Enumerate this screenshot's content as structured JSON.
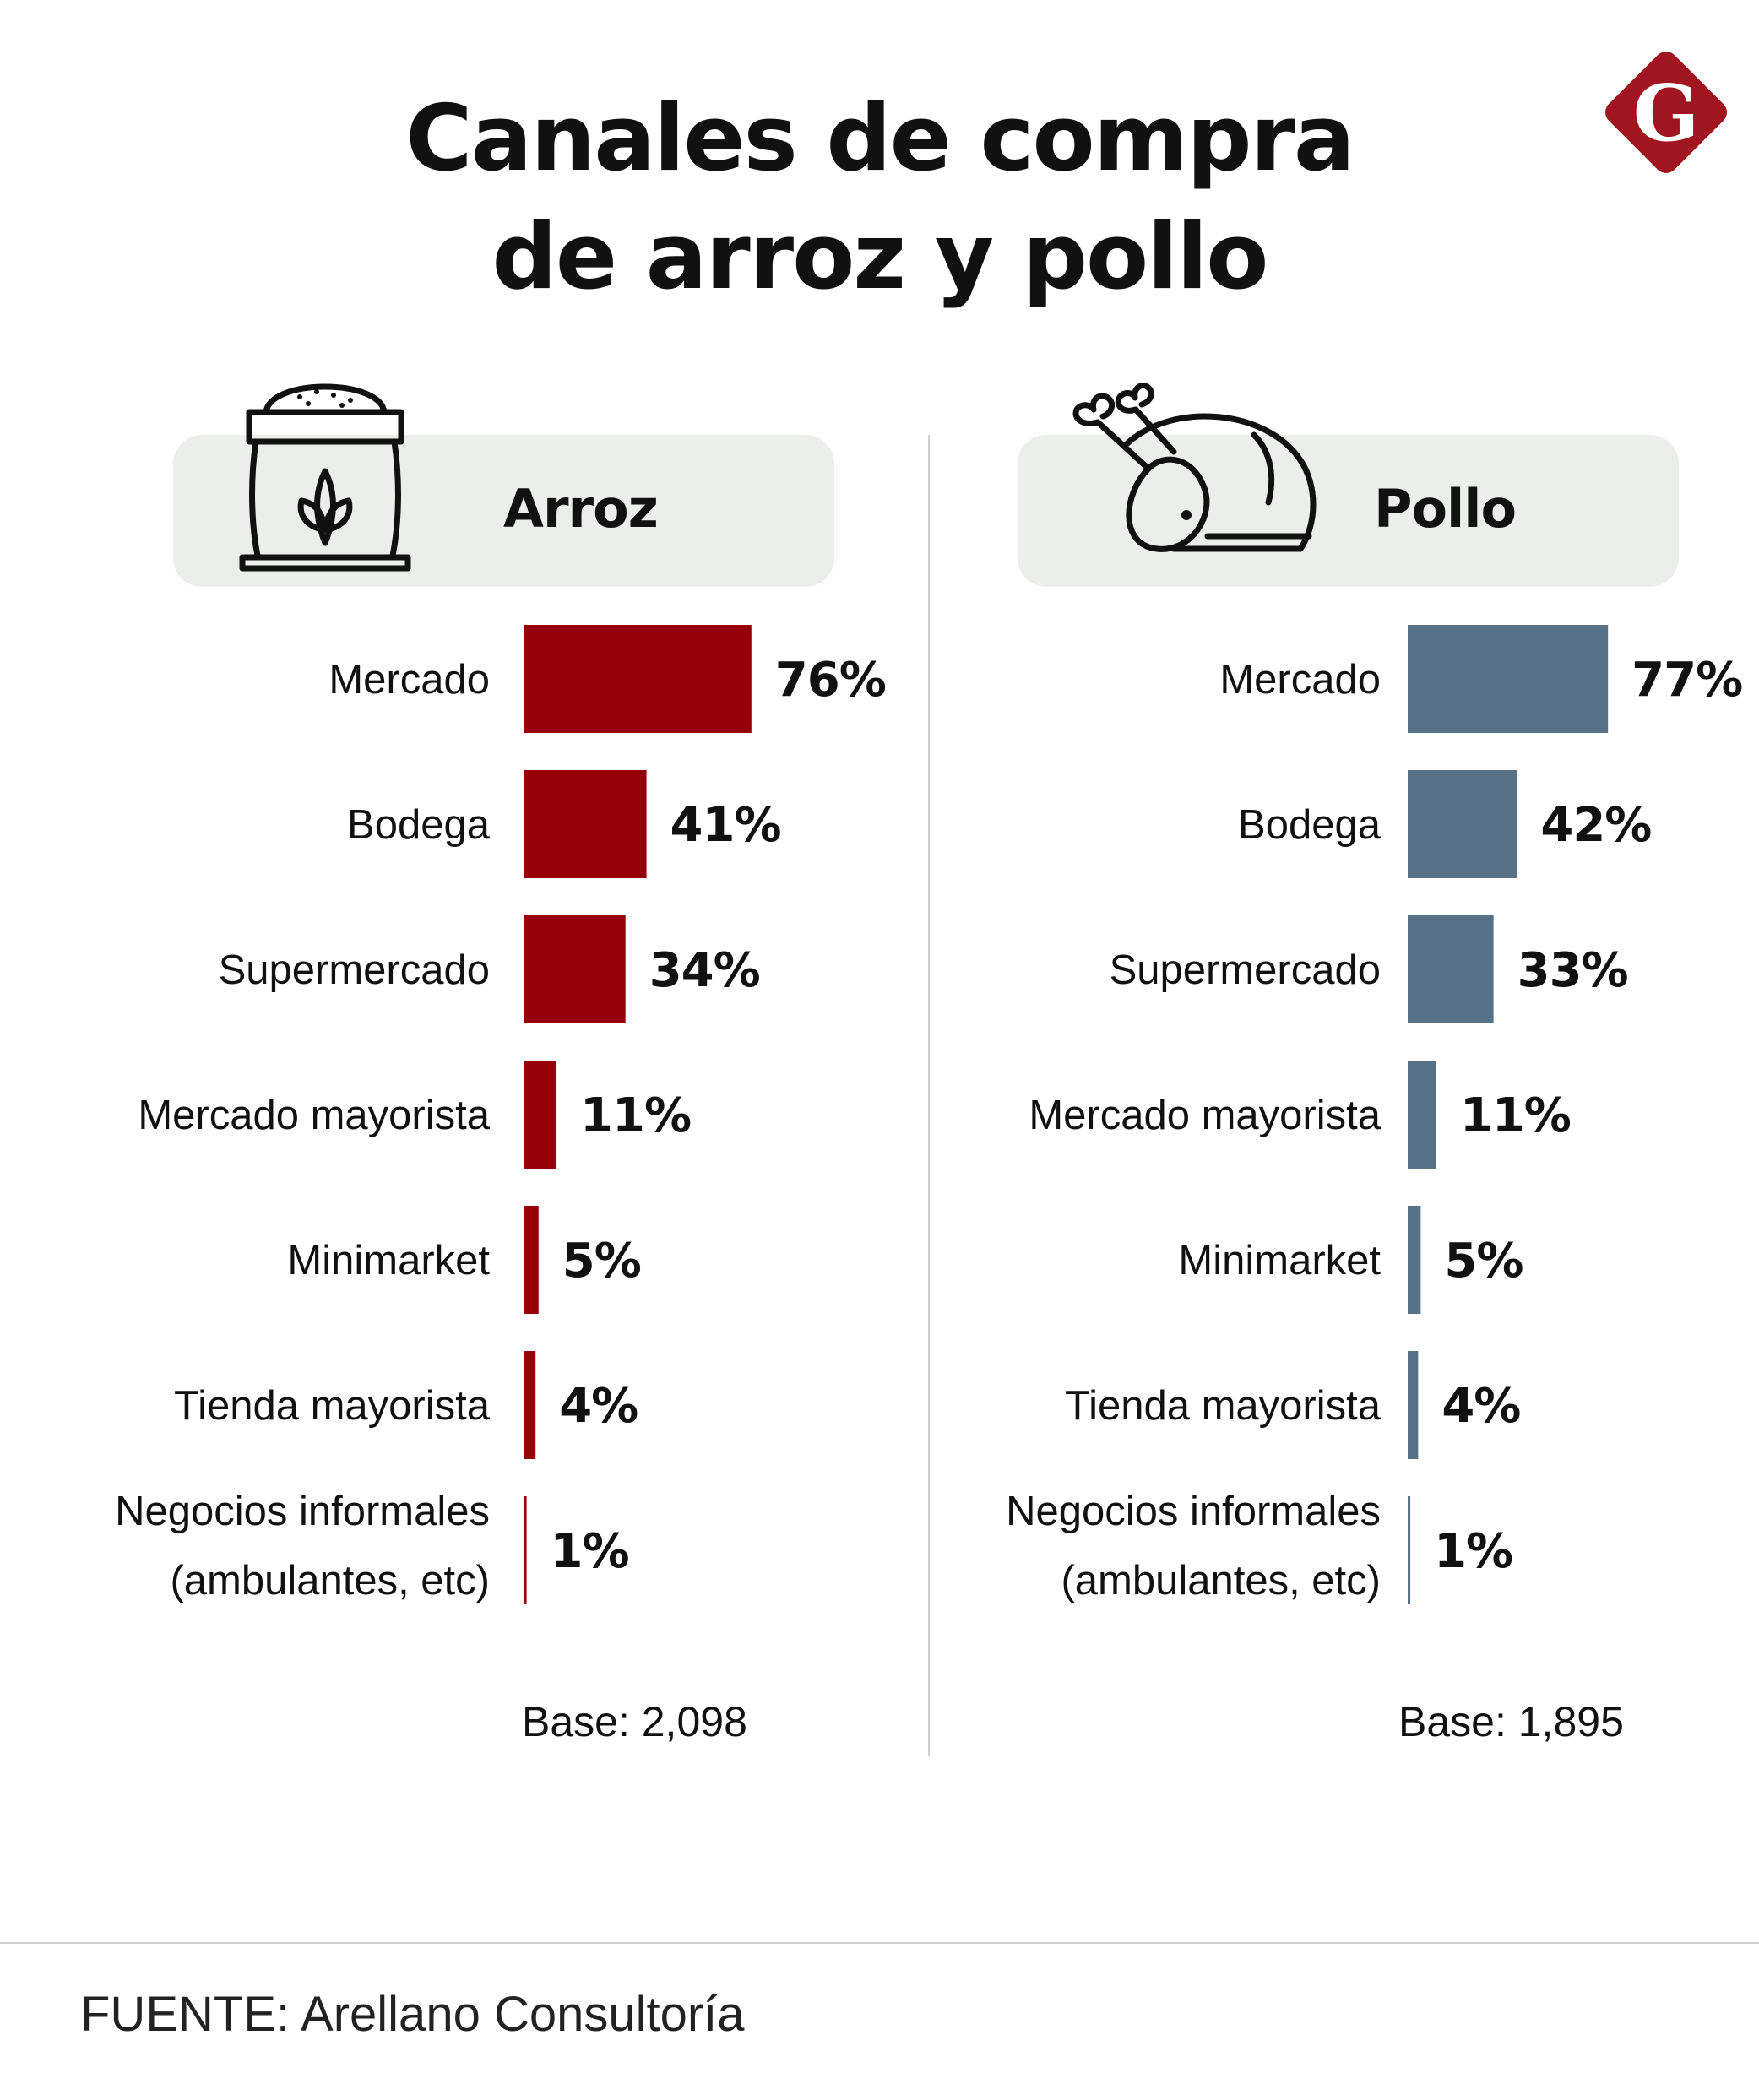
{
  "title_line1": "Canales de compra",
  "title_line2": "de arroz y pollo",
  "logo_letter": "G",
  "source": "FUENTE: Arellano Consultoría",
  "colors": {
    "arroz": "#960008",
    "pollo": "#577189",
    "header_bg": "#ebeeea",
    "logo": "#a0151f"
  },
  "panels": [
    {
      "label": "Arroz",
      "base": "Base: 2,098",
      "icon": "rice-sack-icon"
    },
    {
      "label": "Pollo",
      "base": "Base: 1,895",
      "icon": "chicken-icon"
    }
  ],
  "chart_data": [
    {
      "type": "bar",
      "orientation": "horizontal",
      "title": "Arroz",
      "categories": [
        "Mercado",
        "Bodega",
        "Supermercado",
        "Mercado mayorista",
        "Minimarket",
        "Tienda mayorista",
        "Negocios informales (ambulantes, etc)"
      ],
      "values": [
        76,
        41,
        34,
        11,
        5,
        4,
        1
      ],
      "value_labels": [
        "76%",
        "41%",
        "34%",
        "11%",
        "5%",
        "4%",
        "1%"
      ],
      "color": "#960008",
      "unit": "%"
    },
    {
      "type": "bar",
      "orientation": "horizontal",
      "title": "Pollo",
      "categories": [
        "Mercado",
        "Bodega",
        "Supermercado",
        "Mercado mayorista",
        "Minimarket",
        "Tienda mayorista",
        "Negocios informales (ambulantes, etc)"
      ],
      "values": [
        77,
        42,
        33,
        11,
        5,
        4,
        1
      ],
      "value_labels": [
        "77%",
        "42%",
        "33%",
        "11%",
        "5%",
        "4%",
        "1%"
      ],
      "color": "#577189",
      "unit": "%"
    }
  ]
}
